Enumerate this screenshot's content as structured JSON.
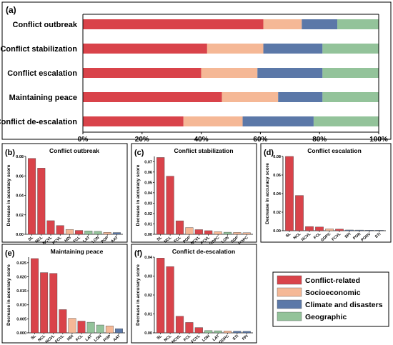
{
  "colors": {
    "Conflict-related": "#d9434a",
    "Socioeconomic": "#f5b896",
    "Climate and disasters": "#5b78a8",
    "Geographic": "#93c39a"
  },
  "legend": [
    {
      "name": "Conflict-related"
    },
    {
      "name": "Socioeconomic"
    },
    {
      "name": "Climate and disasters"
    },
    {
      "name": "Geographic"
    }
  ],
  "chart_data": [
    {
      "panel": "(a)",
      "type": "bar",
      "orientation": "horizontal",
      "stacked": true,
      "categories": [
        "Conflict outbreak",
        "Conflict stabilization",
        "Conflict escalation",
        "Maintaining peace",
        "Conflict de-escalation"
      ],
      "series": [
        {
          "name": "Conflict-related",
          "values": [
            61,
            42,
            40,
            47,
            34
          ]
        },
        {
          "name": "Socioeconomic",
          "values": [
            13,
            19,
            19,
            19,
            20
          ]
        },
        {
          "name": "Climate and disasters",
          "values": [
            12,
            20,
            22,
            15,
            24
          ]
        },
        {
          "name": "Geographic",
          "values": [
            14,
            19,
            19,
            19,
            22
          ]
        }
      ],
      "xlim": [
        0,
        100
      ],
      "xticks": [
        "0%",
        "20%",
        "40%",
        "60%",
        "80%",
        "100%"
      ]
    },
    {
      "panel": "(b)",
      "type": "bar",
      "title": "Conflict outbreak",
      "ylabel": "Decrease in accuracy score",
      "ylim": [
        0,
        0.08
      ],
      "yticks": [
        "0.00",
        "0.02",
        "0.04",
        "0.06",
        "0.08"
      ],
      "categories": [
        "SL",
        "NCL",
        "NCVL",
        "FCVL",
        "HDI",
        "FCL",
        "LAT",
        "LON",
        "POP",
        "AAT"
      ],
      "values": [
        0.078,
        0.068,
        0.014,
        0.009,
        0.005,
        0.004,
        0.0035,
        0.003,
        0.002,
        0.0018
      ],
      "groups": [
        "Conflict-related",
        "Conflict-related",
        "Conflict-related",
        "Conflict-related",
        "Socioeconomic",
        "Conflict-related",
        "Geographic",
        "Geographic",
        "Socioeconomic",
        "Climate and disasters"
      ]
    },
    {
      "panel": "(c)",
      "type": "bar",
      "title": "Conflict stabilization",
      "ylabel": "Decrease in accuracy score",
      "ylim": [
        0,
        0.075
      ],
      "yticks": [
        "0.00",
        "0.01",
        "0.02",
        "0.03",
        "0.04",
        "0.05",
        "0.06",
        "0.07"
      ],
      "categories": [
        "SL",
        "NCL",
        "FCL",
        "POP",
        "NCVL",
        "FCVL",
        "GDPC",
        "LON",
        "GDP",
        "POPC"
      ],
      "values": [
        0.074,
        0.056,
        0.013,
        0.0065,
        0.0045,
        0.0035,
        0.0025,
        0.002,
        0.0018,
        0.0015
      ],
      "groups": [
        "Conflict-related",
        "Conflict-related",
        "Conflict-related",
        "Socioeconomic",
        "Conflict-related",
        "Conflict-related",
        "Socioeconomic",
        "Geographic",
        "Socioeconomic",
        "Socioeconomic"
      ]
    },
    {
      "panel": "(d)",
      "type": "bar",
      "title": "Conflict escalation",
      "ylabel": "Decrease in accuracy score",
      "ylim": [
        0,
        0.08
      ],
      "yticks": [
        "0.00",
        "0.02",
        "0.04",
        "0.06",
        "0.08"
      ],
      "categories": [
        "SL",
        "NCL",
        "NCVL",
        "FCL",
        "GDPC",
        "FCVL",
        "SPI",
        "POR",
        "PORV",
        "STI"
      ],
      "values": [
        0.08,
        0.038,
        0.0045,
        0.004,
        0.002,
        0.0018,
        0.0008,
        0.0007,
        0.0006,
        0.0005
      ],
      "groups": [
        "Conflict-related",
        "Conflict-related",
        "Conflict-related",
        "Conflict-related",
        "Socioeconomic",
        "Conflict-related",
        "Climate and disasters",
        "Climate and disasters",
        "Climate and disasters",
        "Climate and disasters"
      ]
    },
    {
      "panel": "(e)",
      "type": "bar",
      "title": "Maintaining peace",
      "ylabel": "Decrease in accuracy score",
      "ylim": [
        0,
        0.027
      ],
      "yticks": [
        "0.000",
        "0.005",
        "0.010",
        "0.015",
        "0.020",
        "0.025"
      ],
      "categories": [
        "SL",
        "NCL",
        "NCVL",
        "FCVL",
        "HDI",
        "FCL",
        "LAT",
        "LON",
        "POP",
        "AAT"
      ],
      "values": [
        0.0265,
        0.0215,
        0.0212,
        0.0083,
        0.0052,
        0.0042,
        0.0038,
        0.0028,
        0.0025,
        0.0015
      ],
      "groups": [
        "Conflict-related",
        "Conflict-related",
        "Conflict-related",
        "Conflict-related",
        "Socioeconomic",
        "Conflict-related",
        "Geographic",
        "Geographic",
        "Socioeconomic",
        "Climate and disasters"
      ]
    },
    {
      "panel": "(f)",
      "type": "bar",
      "title": "Conflict de-escalation",
      "ylabel": "Decrease in accuracy score",
      "ylim": [
        0,
        0.04
      ],
      "yticks": [
        "0.00",
        "0.01",
        "0.02",
        "0.03",
        "0.04"
      ],
      "categories": [
        "SL",
        "NCL",
        "NCVL",
        "FCL",
        "FCVL",
        "LON",
        "LAT",
        "GDPC",
        "STI",
        "FPI"
      ],
      "values": [
        0.0395,
        0.035,
        0.0088,
        0.0055,
        0.0028,
        0.0012,
        0.0011,
        0.001,
        0.0009,
        0.0008
      ],
      "groups": [
        "Conflict-related",
        "Conflict-related",
        "Conflict-related",
        "Conflict-related",
        "Conflict-related",
        "Geographic",
        "Geographic",
        "Socioeconomic",
        "Climate and disasters",
        "Climate and disasters"
      ]
    }
  ]
}
